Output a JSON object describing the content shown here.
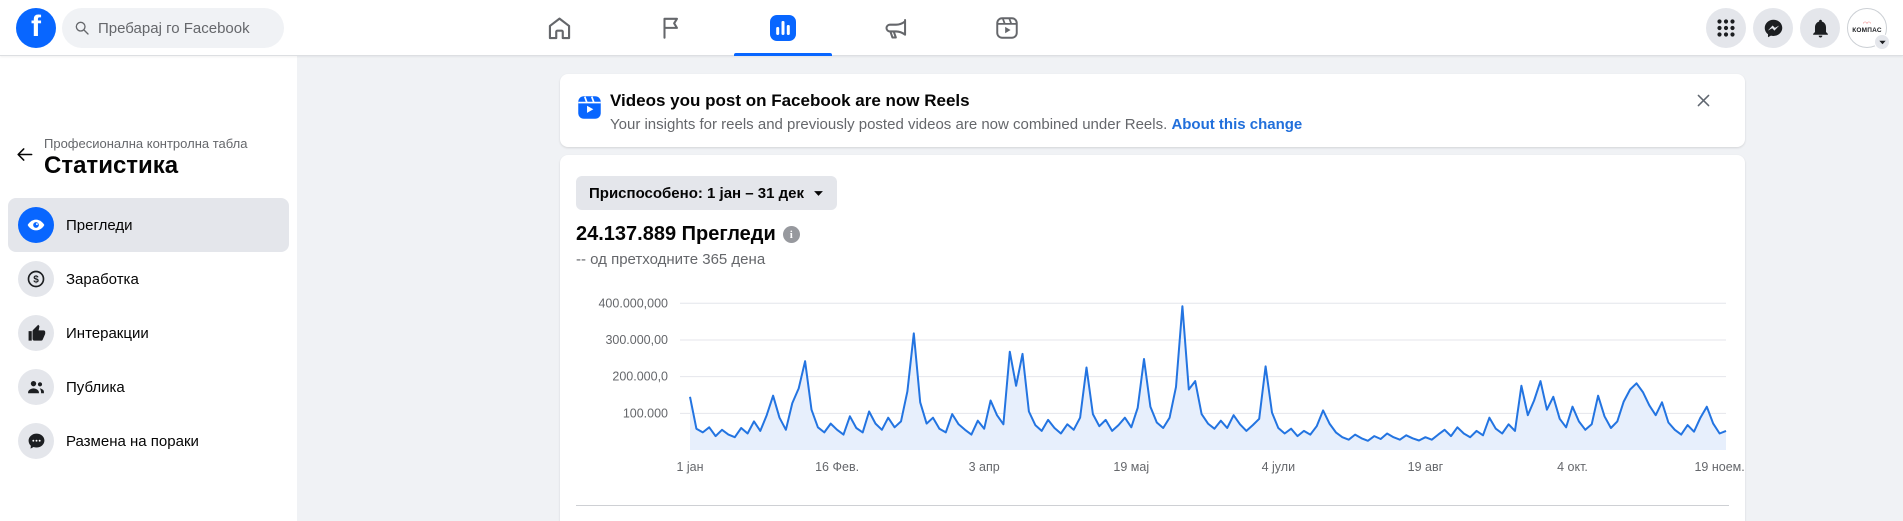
{
  "theme": {
    "accent": "#0866ff",
    "link": "#216fdb",
    "line": "#2374e1",
    "fill": "#e7effc",
    "grid": "#e4e6eb",
    "bg": "#f0f2f5"
  },
  "topbar": {
    "search_placeholder": "Пребарај го Facebook",
    "nav_tabs": [
      {
        "id": "home",
        "icon": "home-icon",
        "active": false
      },
      {
        "id": "pages",
        "icon": "flag-icon",
        "active": false
      },
      {
        "id": "insights",
        "icon": "insights-icon",
        "active": true
      },
      {
        "id": "ads",
        "icon": "megaphone-icon",
        "active": false
      },
      {
        "id": "reels",
        "icon": "reels-icon",
        "active": false
      }
    ],
    "right_buttons": [
      "menu-grid-icon",
      "messenger-icon",
      "bell-icon"
    ],
    "profile": {
      "name": "КОМПАС"
    }
  },
  "sidebar": {
    "eyebrow": "Професионална контролна табла",
    "title": "Статистика",
    "items": [
      {
        "label": "Прегледи",
        "icon": "eye-icon",
        "active": true
      },
      {
        "label": "Заработка",
        "icon": "dollar-icon",
        "active": false
      },
      {
        "label": "Интеракции",
        "icon": "thumbs-up-icon",
        "active": false
      },
      {
        "label": "Публика",
        "icon": "audience-icon",
        "active": false
      },
      {
        "label": "Размена на пораки",
        "icon": "messages-icon",
        "active": false
      }
    ]
  },
  "banner": {
    "title": "Videos you post on Facebook are now Reels",
    "body": "Your insights for reels and previously posted videos are now combined under Reels. ",
    "link": "About this change"
  },
  "insights": {
    "date_filter": "Приспособено: 1 јан – 31 дек",
    "metric_value": "24.137.889",
    "metric_label": "Прегледи",
    "metric_sub": "-- од претходните 365 дена"
  },
  "chart_data": {
    "type": "area",
    "series_name": "Прегледи",
    "unit": "millions",
    "ylim": [
      0,
      400
    ],
    "grid": true,
    "legend": false,
    "y_ticks": [
      {
        "value": 100,
        "label": "100.000"
      },
      {
        "value": 200,
        "label": "200.000,0"
      },
      {
        "value": 300,
        "label": "300.000,00"
      },
      {
        "value": 400,
        "label": "400.000,000"
      }
    ],
    "x_ticks": [
      {
        "day": 1,
        "label": "1 јан"
      },
      {
        "day": 47,
        "label": "16 Фев."
      },
      {
        "day": 93,
        "label": "3 апр"
      },
      {
        "day": 139,
        "label": "19 мај"
      },
      {
        "day": 185,
        "label": "4 јули"
      },
      {
        "day": 231,
        "label": "19 авг"
      },
      {
        "day": 277,
        "label": "4 окт."
      },
      {
        "day": 323,
        "label": "19 ноем."
      }
    ],
    "day_start": 1,
    "day_step": 2,
    "day_max": 325,
    "values_millions": [
      145,
      58,
      48,
      62,
      38,
      55,
      42,
      35,
      60,
      45,
      78,
      52,
      95,
      148,
      88,
      55,
      128,
      168,
      242,
      110,
      62,
      48,
      72,
      55,
      42,
      92,
      60,
      48,
      105,
      72,
      55,
      88,
      62,
      78,
      160,
      318,
      130,
      72,
      88,
      58,
      48,
      98,
      70,
      55,
      42,
      80,
      58,
      135,
      95,
      70,
      268,
      175,
      262,
      105,
      68,
      52,
      82,
      60,
      45,
      70,
      55,
      88,
      225,
      98,
      65,
      82,
      52,
      68,
      88,
      62,
      115,
      248,
      118,
      75,
      60,
      88,
      172,
      392,
      165,
      188,
      98,
      72,
      58,
      80,
      60,
      95,
      70,
      52,
      68,
      85,
      228,
      102,
      60,
      45,
      58,
      38,
      52,
      42,
      65,
      108,
      72,
      48,
      35,
      28,
      42,
      32,
      25,
      38,
      30,
      45,
      35,
      28,
      40,
      32,
      26,
      35,
      28,
      42,
      55,
      38,
      62,
      45,
      35,
      52,
      40,
      88,
      58,
      45,
      70,
      52,
      175,
      95,
      135,
      188,
      110,
      145,
      85,
      62,
      118,
      78,
      55,
      70,
      148,
      92,
      60,
      78,
      132,
      165,
      182,
      158,
      122,
      95,
      130,
      75,
      55,
      42,
      68,
      50,
      88,
      118,
      72,
      45,
      52
    ],
    "line_color": "#2374e1",
    "fill_color": "#e7effc",
    "grid_color": "#e4e6eb"
  }
}
